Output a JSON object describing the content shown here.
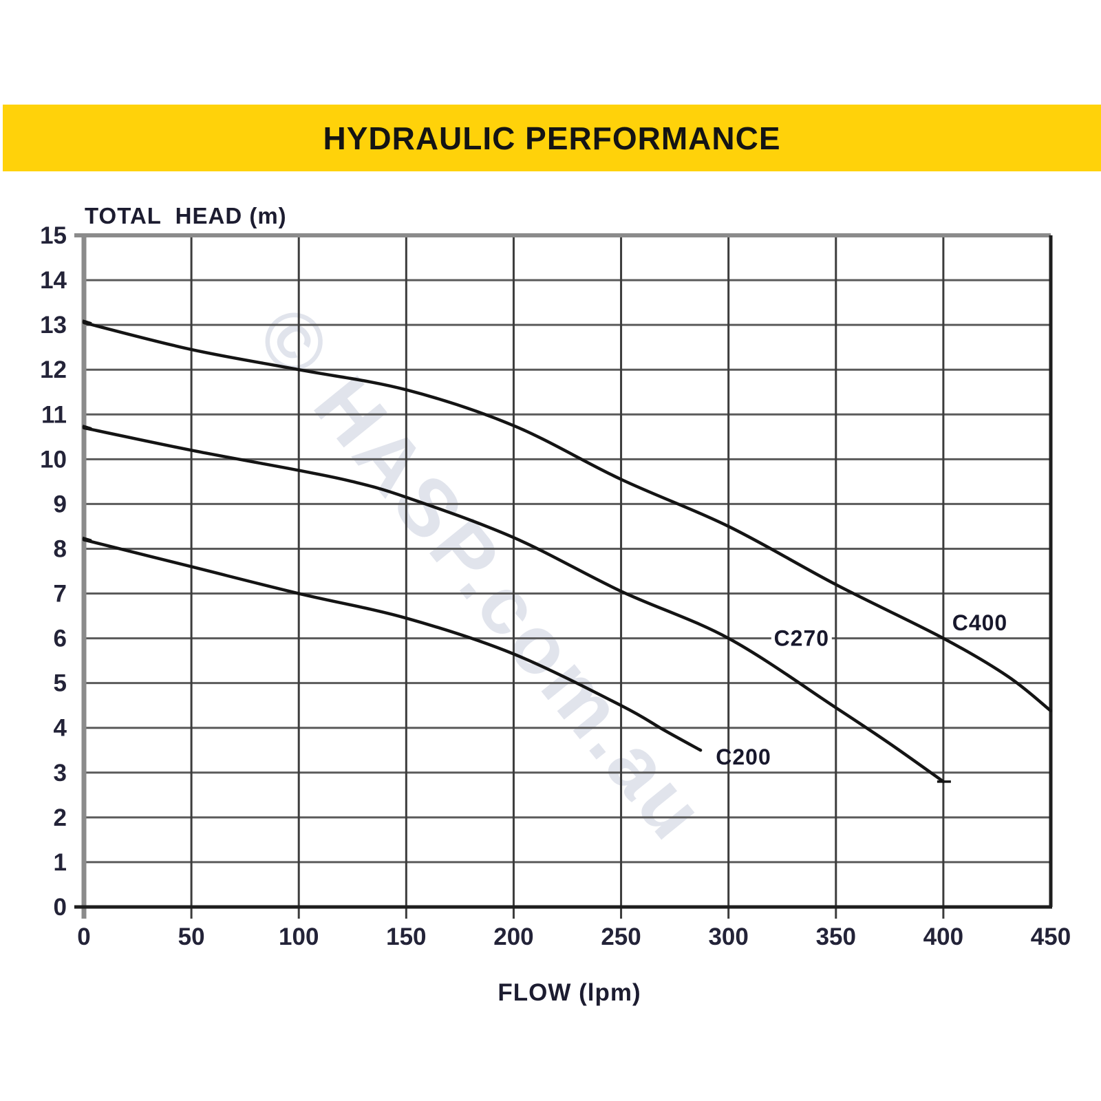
{
  "banner": {
    "title": "HYDRAULIC PERFORMANCE",
    "bg_color": "#FFD20A",
    "text_color": "#141414"
  },
  "watermark": {
    "text": "© HASP.com.au",
    "color": "#b9c0d4",
    "opacity": 0.42
  },
  "chart_data": {
    "type": "line",
    "title": "HYDRAULIC PERFORMANCE",
    "xlabel": "FLOW (lpm)",
    "ylabel": "TOTAL  HEAD (m)",
    "xlim": [
      0,
      450
    ],
    "ylim": [
      0,
      15
    ],
    "x_ticks": [
      0,
      50,
      100,
      150,
      200,
      250,
      300,
      350,
      400,
      450
    ],
    "y_ticks": [
      0,
      1,
      2,
      3,
      4,
      5,
      6,
      7,
      8,
      9,
      10,
      11,
      12,
      13,
      14,
      15
    ],
    "grid": true,
    "legend_position": "inline-labels",
    "series": [
      {
        "name": "C400",
        "points": [
          [
            0,
            13.05
          ],
          [
            50,
            12.45
          ],
          [
            100,
            12.0
          ],
          [
            150,
            11.55
          ],
          [
            200,
            10.75
          ],
          [
            250,
            9.55
          ],
          [
            300,
            8.5
          ],
          [
            350,
            7.2
          ],
          [
            400,
            6.0
          ],
          [
            430,
            5.15
          ],
          [
            450,
            4.38
          ]
        ],
        "label": {
          "text": "C400",
          "flow": 417,
          "head": 6.35,
          "bg": false
        },
        "start_tick": true,
        "end_tick": false
      },
      {
        "name": "C270",
        "points": [
          [
            0,
            10.7
          ],
          [
            50,
            10.2
          ],
          [
            100,
            9.75
          ],
          [
            125,
            9.5
          ],
          [
            150,
            9.15
          ],
          [
            200,
            8.25
          ],
          [
            250,
            7.05
          ],
          [
            300,
            6.0
          ],
          [
            350,
            4.45
          ],
          [
            375,
            3.65
          ],
          [
            400,
            2.8
          ]
        ],
        "label": {
          "text": "C270",
          "flow": 334,
          "head": 6.0,
          "bg": true
        },
        "start_tick": true,
        "end_tick": true
      },
      {
        "name": "C200",
        "points": [
          [
            0,
            8.2
          ],
          [
            50,
            7.6
          ],
          [
            100,
            7.0
          ],
          [
            150,
            6.45
          ],
          [
            200,
            5.65
          ],
          [
            250,
            4.5
          ],
          [
            270,
            3.95
          ],
          [
            287,
            3.5
          ]
        ],
        "label": {
          "text": "C200",
          "flow": 307,
          "head": 3.35,
          "bg": false
        },
        "start_tick": true,
        "end_tick": false
      }
    ],
    "line_color": "#141414",
    "grid_color_h": "#5a5a5a",
    "grid_color_v": "#3c3c3c",
    "frame_color_light": "#8b8b8b",
    "frame_color_dark": "#1e1e1e",
    "tick_label_color": "#232338",
    "axis_title_color": "#1c1c30"
  }
}
